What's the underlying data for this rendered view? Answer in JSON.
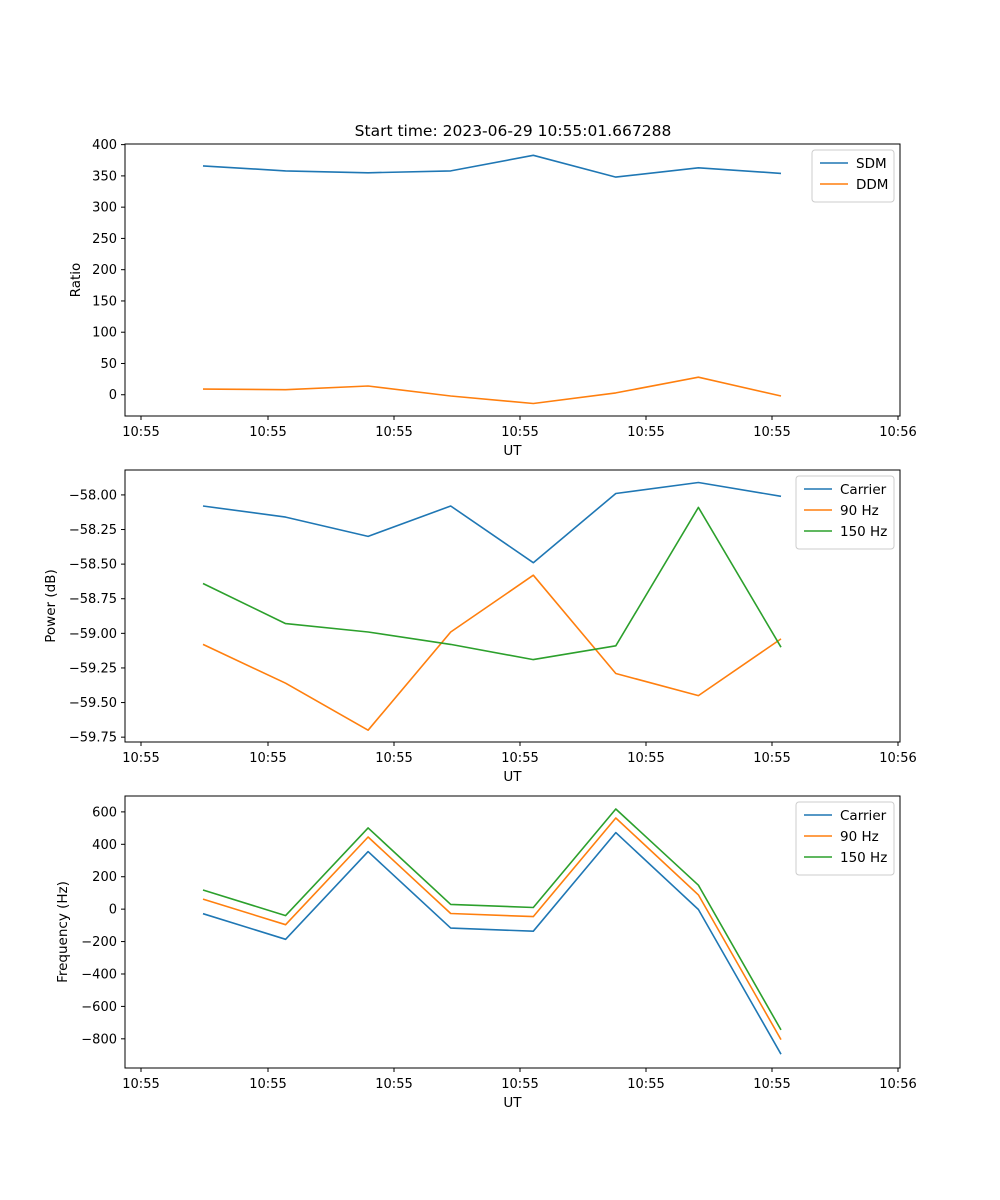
{
  "figure_title": "Start time: 2023-06-29 10:55:01.667288",
  "chart_data": [
    {
      "type": "line",
      "title": "Start time: 2023-06-29 10:55:01.667288",
      "xlabel": "UT",
      "ylabel": "Ratio",
      "x": [
        "10:55",
        "10:55",
        "10:55",
        "10:55",
        "10:55",
        "10:55",
        "10:55",
        "10:55"
      ],
      "x_tick_labels": [
        "10:55",
        "10:55",
        "10:55",
        "10:55",
        "10:55",
        "10:55",
        "10:55",
        "10:56"
      ],
      "y_ticks": [
        0,
        50,
        100,
        150,
        200,
        250,
        300,
        350,
        400
      ],
      "y_tick_labels": [
        "0",
        "50",
        "100",
        "150",
        "200",
        "250",
        "300",
        "350",
        "400"
      ],
      "ylim": [
        -34,
        401
      ],
      "legend_position": "upper right",
      "series": [
        {
          "name": "SDM",
          "color": "#1f77b4",
          "values": [
            366,
            358,
            355,
            358,
            383,
            348,
            363,
            354
          ]
        },
        {
          "name": "DDM",
          "color": "#ff7f0e",
          "values": [
            9,
            8,
            14,
            -2,
            -14,
            3,
            28,
            -2
          ]
        }
      ]
    },
    {
      "type": "line",
      "title": "",
      "xlabel": "UT",
      "ylabel": "Power (dB)",
      "x": [
        "10:55",
        "10:55",
        "10:55",
        "10:55",
        "10:55",
        "10:55",
        "10:55",
        "10:55"
      ],
      "x_tick_labels": [
        "10:55",
        "10:55",
        "10:55",
        "10:55",
        "10:55",
        "10:55",
        "10:55",
        "10:56"
      ],
      "y_ticks": [
        -59.75,
        -59.5,
        -59.25,
        -59.0,
        -58.75,
        -58.5,
        -58.25,
        -58.0
      ],
      "y_tick_labels": [
        "−59.75",
        "−59.50",
        "−59.25",
        "−59.00",
        "−58.75",
        "−58.50",
        "−58.25",
        "−58.00"
      ],
      "ylim": [
        -59.785,
        -57.82
      ],
      "legend_position": "upper right",
      "series": [
        {
          "name": "Carrier",
          "color": "#1f77b4",
          "values": [
            -58.08,
            -58.16,
            -58.3,
            -58.08,
            -58.49,
            -57.99,
            -57.91,
            -58.01
          ]
        },
        {
          "name": "90 Hz",
          "color": "#ff7f0e",
          "values": [
            -59.08,
            -59.36,
            -59.7,
            -58.99,
            -58.58,
            -59.29,
            -59.45,
            -59.04
          ]
        },
        {
          "name": "150 Hz",
          "color": "#2ca02c",
          "values": [
            -58.64,
            -58.93,
            -58.99,
            -59.08,
            -59.19,
            -59.09,
            -58.09,
            -59.1
          ]
        }
      ]
    },
    {
      "type": "line",
      "title": "",
      "xlabel": "UT",
      "ylabel": "Frequency (Hz)",
      "x": [
        "10:55",
        "10:55",
        "10:55",
        "10:55",
        "10:55",
        "10:55",
        "10:55",
        "10:55"
      ],
      "x_tick_labels": [
        "10:55",
        "10:55",
        "10:55",
        "10:55",
        "10:55",
        "10:55",
        "10:55",
        "10:56"
      ],
      "y_ticks": [
        -800,
        -600,
        -400,
        -200,
        0,
        200,
        400,
        600
      ],
      "y_tick_labels": [
        "−800",
        "−600",
        "−400",
        "−200",
        "0",
        "200",
        "400",
        "600"
      ],
      "ylim": [
        -980,
        698
      ],
      "legend_position": "upper right",
      "series": [
        {
          "name": "Carrier",
          "color": "#1f77b4",
          "values": [
            -28,
            -186,
            355,
            -117,
            -136,
            472,
            -2,
            -895
          ]
        },
        {
          "name": "90 Hz",
          "color": "#ff7f0e",
          "values": [
            62,
            -96,
            445,
            -27,
            -46,
            562,
            88,
            -805
          ]
        },
        {
          "name": "150 Hz",
          "color": "#2ca02c",
          "values": [
            118,
            -40,
            501,
            29,
            10,
            618,
            148,
            -745
          ]
        }
      ]
    }
  ]
}
